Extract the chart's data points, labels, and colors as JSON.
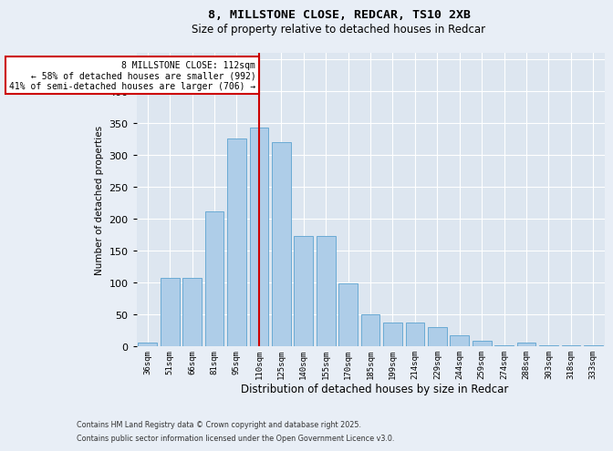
{
  "title_line1": "8, MILLSTONE CLOSE, REDCAR, TS10 2XB",
  "title_line2": "Size of property relative to detached houses in Redcar",
  "xlabel": "Distribution of detached houses by size in Redcar",
  "ylabel": "Number of detached properties",
  "categories": [
    "36sqm",
    "51sqm",
    "66sqm",
    "81sqm",
    "95sqm",
    "110sqm",
    "125sqm",
    "140sqm",
    "155sqm",
    "170sqm",
    "185sqm",
    "199sqm",
    "214sqm",
    "229sqm",
    "244sqm",
    "259sqm",
    "274sqm",
    "288sqm",
    "303sqm",
    "318sqm",
    "333sqm"
  ],
  "values": [
    6,
    107,
    107,
    211,
    325,
    342,
    319,
    172,
    172,
    99,
    50,
    37,
    37,
    30,
    17,
    9,
    1,
    5,
    1,
    1,
    1
  ],
  "bar_color": "#aecde8",
  "bar_edge_color": "#6aaad4",
  "vline_pos": 5,
  "property_line_label": "8 MILLSTONE CLOSE: 112sqm",
  "annotation_line2": "← 58% of detached houses are smaller (992)",
  "annotation_line3": "41% of semi-detached houses are larger (706) →",
  "vline_color": "#cc0000",
  "ylim": [
    0,
    460
  ],
  "yticks": [
    0,
    50,
    100,
    150,
    200,
    250,
    300,
    350,
    400,
    450
  ],
  "footnote_line1": "Contains HM Land Registry data © Crown copyright and database right 2025.",
  "footnote_line2": "Contains public sector information licensed under the Open Government Licence v3.0.",
  "background_color": "#e8eef6",
  "plot_bg_color": "#dde6f0"
}
